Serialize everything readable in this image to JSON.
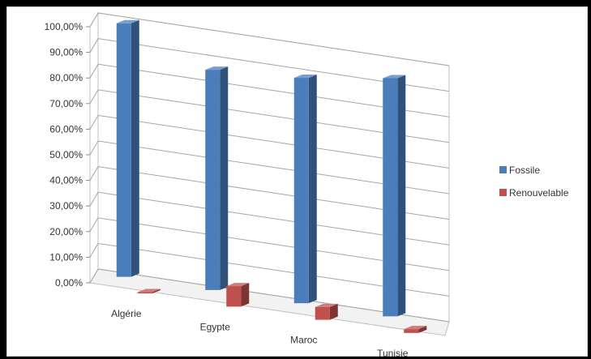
{
  "chart_data": {
    "type": "bar",
    "title": "",
    "xlabel": "",
    "ylabel": "",
    "categories": [
      "Algérie",
      "Egypte",
      "Maroc",
      "Tunisie"
    ],
    "series": [
      {
        "name": "Fossile",
        "values": [
          99.0,
          86.0,
          88.0,
          93.0
        ]
      },
      {
        "name": "Renouvelable",
        "values": [
          0.5,
          8.0,
          5.0,
          1.5
        ]
      }
    ],
    "ylim": [
      0,
      100
    ],
    "y_ticks": [
      "0,00%",
      "10,00%",
      "20,00%",
      "30,00%",
      "40,00%",
      "50,00%",
      "60,00%",
      "70,00%",
      "80,00%",
      "90,00%",
      "100,00%"
    ],
    "grid": true,
    "legend_position": "right",
    "colors": {
      "Fossile": "#4a7ebb",
      "Renouvelable": "#c0504d"
    }
  }
}
